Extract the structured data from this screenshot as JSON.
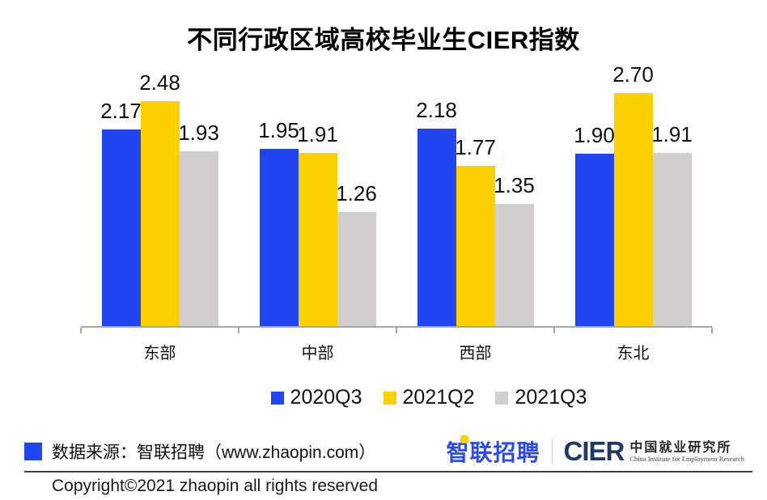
{
  "title": "不同行政区域高校毕业生CIER指数",
  "chart_data": {
    "type": "bar",
    "categories": [
      "东部",
      "中部",
      "西部",
      "东北"
    ],
    "series": [
      {
        "name": "2020Q3",
        "color": "#2145f0",
        "values": [
          2.17,
          1.95,
          2.18,
          1.9
        ]
      },
      {
        "name": "2021Q2",
        "color": "#fdd000",
        "values": [
          2.48,
          1.91,
          1.77,
          2.7
        ]
      },
      {
        "name": "2021Q3",
        "color": "#d0cece",
        "values": [
          1.93,
          1.26,
          1.35,
          1.91
        ]
      }
    ],
    "ylim": [
      0,
      2.9
    ],
    "value_labels": true,
    "value_label_decimals": 2,
    "legend_position": "bottom",
    "grid": false,
    "y_axis_visible": false,
    "x_axis_line_color": "#a6a6a6"
  },
  "footer": {
    "source_text": "数据来源：智联招聘（www.zhaopin.com）",
    "zhaopin_logo_text": "智联招聘",
    "cier_logo_text": "CIER",
    "cier_logo_cn": "中国就业研究所",
    "cier_logo_en": "China Institute for Employment Research",
    "copyright": "Copyright©2021 zhaopin all rights reserved"
  },
  "colors": {
    "series_blue": "#2145f0",
    "series_yellow": "#fdd000",
    "series_gray": "#d0cece",
    "zhaopin_logo_blue": "#2b4af0",
    "zhaopin_logo_yellow": "#ffd000",
    "cier_navy": "#1f3864",
    "axis_line": "#a6a6a6"
  }
}
